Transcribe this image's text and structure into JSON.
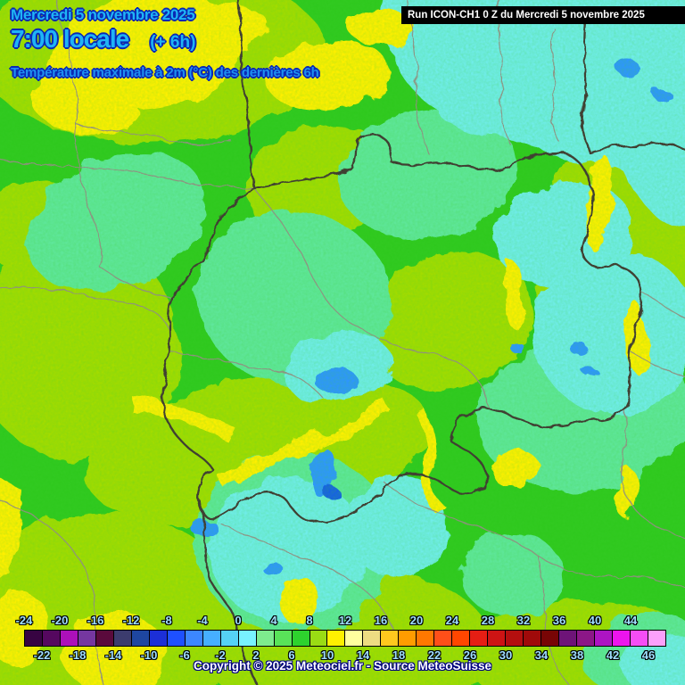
{
  "header": {
    "date": "Mercredi 5 novembre 2025",
    "time": "7:00 locale",
    "run_offset": "(+ 6h)",
    "parameter": "Température maximale à 2m (°C) des dernières 6h"
  },
  "run_bar": {
    "text": "Run ICON-CH1 0 Z du Mercredi 5 novembre 2025"
  },
  "footer": {
    "copyright": "Copyright © 2025 Meteociel.fr - Source MeteoSuisse"
  },
  "colors": {
    "base_green": "#2FC91E",
    "yellow_green": "#A3DC05",
    "yellow": "#FFF000",
    "mint": "#5FE79B",
    "cyan": "#6FEDEA",
    "blue": "#2E96FF",
    "blue_dark": "#1460E6",
    "border_dark": "#3F4033",
    "border_gray": "#8F9080",
    "header_cyan": "#1FB4F5",
    "param_blue": "#1E90F0",
    "text_outline": "#0A28B4",
    "label_cyan": "#9FDFFF",
    "copyright_outline": "#000080"
  },
  "scale": {
    "unit": "°C",
    "min": -24,
    "max": 48,
    "step": 2,
    "box_values": [
      -24,
      -22,
      -20,
      -18,
      -16,
      -14,
      -12,
      -10,
      -8,
      -6,
      -4,
      -2,
      0,
      2,
      4,
      6,
      8,
      10,
      12,
      14,
      16,
      18,
      20,
      22,
      24,
      26,
      28,
      30,
      32,
      34,
      36,
      38,
      40,
      42,
      44,
      46
    ],
    "box_colors": [
      "#370442",
      "#55085F",
      "#AD10B9",
      "#7537A0",
      "#5A0A3C",
      "#3C3C6E",
      "#1E46A0",
      "#1C2FD7",
      "#1E50FF",
      "#3C87FF",
      "#46AFFF",
      "#55D2F5",
      "#78F2FF",
      "#7EEB8E",
      "#59E359",
      "#2ED22E",
      "#9ADC14",
      "#FFF000",
      "#FFFF9E",
      "#EEDC82",
      "#FFC81E",
      "#FF9C00",
      "#FF7800",
      "#FF4F19",
      "#FF4600",
      "#E61E14",
      "#CD1414",
      "#B40F0F",
      "#A00A0A",
      "#780505",
      "#6E1478",
      "#8C1787",
      "#AD14C3",
      "#ED14ED",
      "#F54DF5",
      "#FBA0FB"
    ],
    "top_labels": [
      "-24",
      "-20",
      "-16",
      "-12",
      "-8",
      "-4",
      "0",
      "4",
      "8",
      "12",
      "16",
      "20",
      "24",
      "28",
      "32",
      "36",
      "40",
      "44"
    ],
    "bottom_labels": [
      "-22",
      "-18",
      "-14",
      "-10",
      "-6",
      "-2",
      "2",
      "6",
      "10",
      "14",
      "18",
      "22",
      "26",
      "30",
      "34",
      "38",
      "42",
      "46"
    ]
  }
}
